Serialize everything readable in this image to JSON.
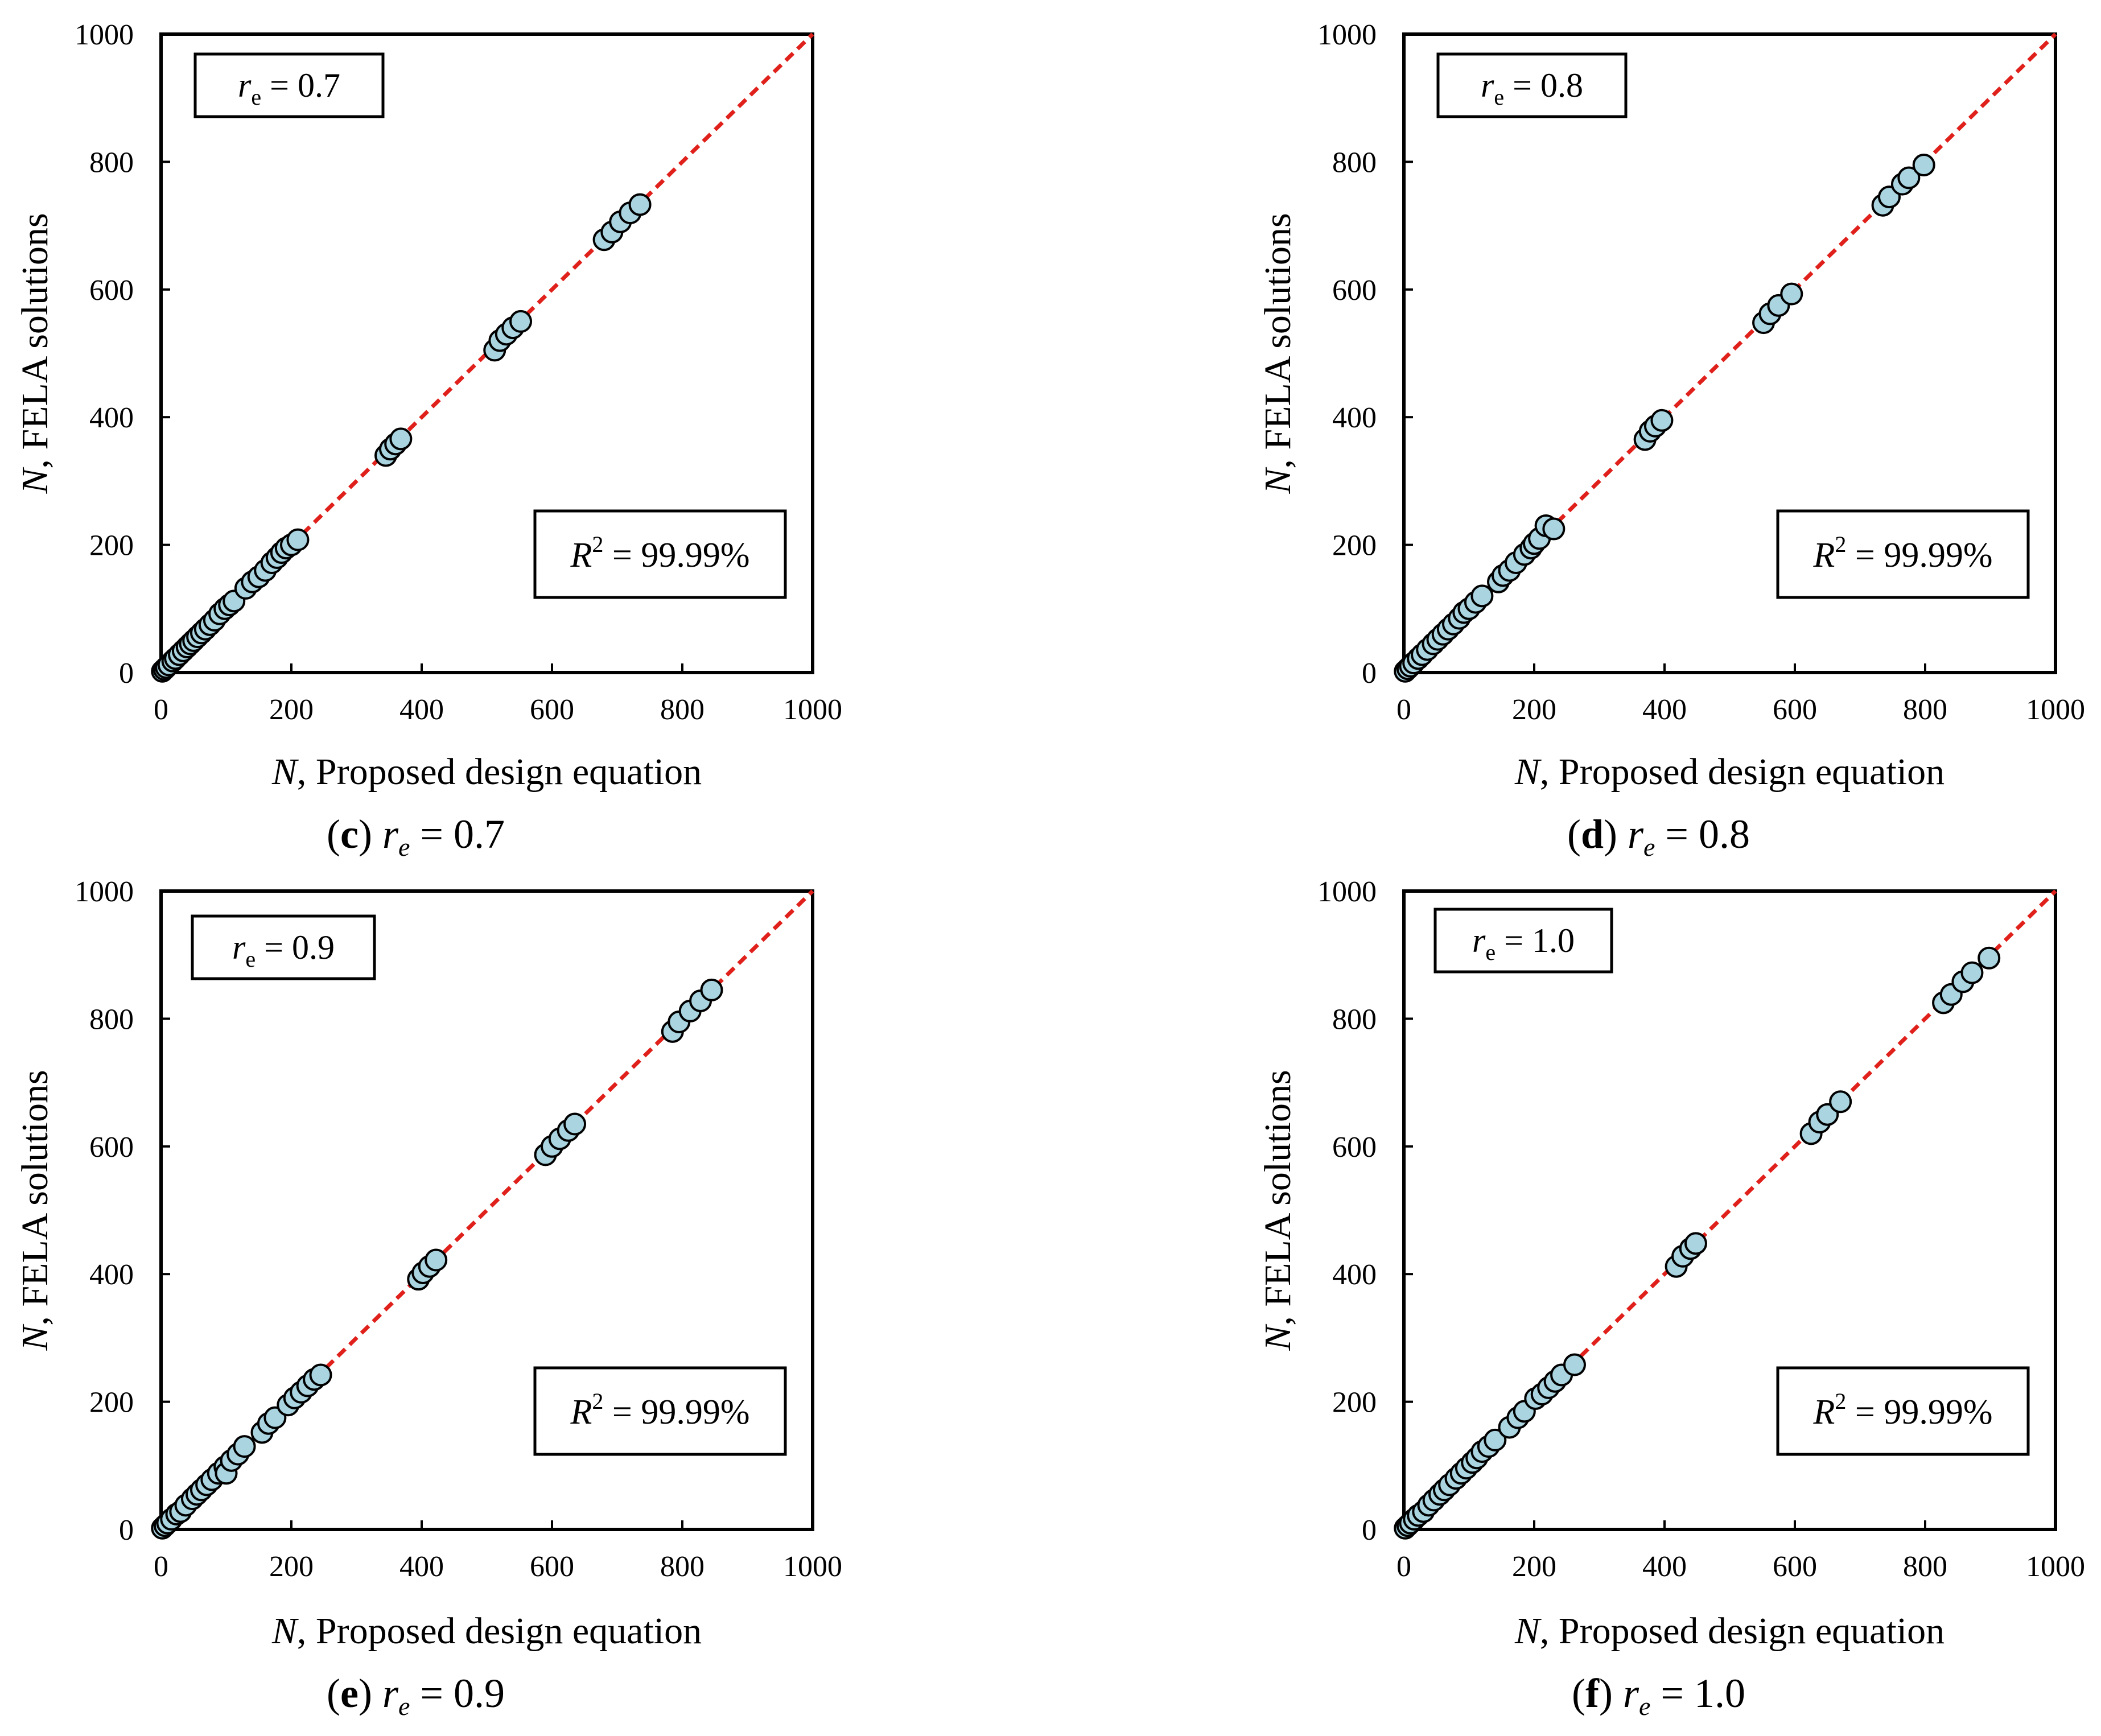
{
  "colors": {
    "marker_fill": "#a9d4e0",
    "marker_stroke": "#000000",
    "fit_line": "#e0201b",
    "axis": "#000000"
  },
  "chart_data": [
    {
      "panel": "c",
      "type": "scatter",
      "re": "0.7",
      "caption": {
        "letter": "c",
        "param": "r",
        "param_sub": "e",
        "value": "0.7"
      },
      "legend_box": {
        "var": "r",
        "sub": "e",
        "eq": "= 0.7"
      },
      "r2_box": {
        "var": "R",
        "sup": "2",
        "eq": "= 99.99%"
      },
      "xlabel": {
        "var": "N",
        "text": ", Proposed design equation"
      },
      "ylabel": {
        "var": "N",
        "text": ", FELA solutions"
      },
      "xlim": [
        0,
        1000
      ],
      "ylim": [
        0,
        1000
      ],
      "xticks": [
        0,
        200,
        400,
        600,
        800,
        1000
      ],
      "yticks": [
        0,
        200,
        400,
        600,
        800,
        1000
      ],
      "fit_line": {
        "from": [
          0,
          0
        ],
        "to": [
          1000,
          1000
        ],
        "style": "dashed"
      },
      "points": [
        [
          2,
          2
        ],
        [
          5,
          5
        ],
        [
          8,
          8
        ],
        [
          12,
          12
        ],
        [
          18,
          18
        ],
        [
          22,
          22
        ],
        [
          28,
          28
        ],
        [
          34,
          34
        ],
        [
          40,
          40
        ],
        [
          45,
          45
        ],
        [
          50,
          50
        ],
        [
          56,
          56
        ],
        [
          62,
          62
        ],
        [
          68,
          68
        ],
        [
          75,
          75
        ],
        [
          82,
          82
        ],
        [
          90,
          92
        ],
        [
          98,
          100
        ],
        [
          105,
          106
        ],
        [
          112,
          112
        ],
        [
          130,
          132
        ],
        [
          140,
          142
        ],
        [
          150,
          150
        ],
        [
          160,
          160
        ],
        [
          170,
          172
        ],
        [
          178,
          180
        ],
        [
          185,
          188
        ],
        [
          192,
          195
        ],
        [
          200,
          200
        ],
        [
          210,
          208
        ],
        [
          345,
          340
        ],
        [
          352,
          350
        ],
        [
          360,
          358
        ],
        [
          368,
          366
        ],
        [
          512,
          505
        ],
        [
          520,
          520
        ],
        [
          530,
          530
        ],
        [
          540,
          540
        ],
        [
          552,
          550
        ],
        [
          680,
          678
        ],
        [
          692,
          690
        ],
        [
          705,
          706
        ],
        [
          720,
          720
        ],
        [
          735,
          733
        ]
      ]
    },
    {
      "panel": "d",
      "type": "scatter",
      "re": "0.8",
      "caption": {
        "letter": "d",
        "param": "r",
        "param_sub": "e",
        "value": "0.8"
      },
      "legend_box": {
        "var": "r",
        "sub": "e",
        "eq": "= 0.8"
      },
      "r2_box": {
        "var": "R",
        "sup": "2",
        "eq": "= 99.99%"
      },
      "xlabel": {
        "var": "N",
        "text": ", Proposed design equation"
      },
      "ylabel": {
        "var": "N",
        "text": ", FELA solutions"
      },
      "xlim": [
        0,
        1000
      ],
      "ylim": [
        0,
        1000
      ],
      "xticks": [
        0,
        200,
        400,
        600,
        800,
        1000
      ],
      "yticks": [
        0,
        200,
        400,
        600,
        800,
        1000
      ],
      "fit_line": {
        "from": [
          0,
          0
        ],
        "to": [
          1000,
          1000
        ],
        "style": "dashed"
      },
      "points": [
        [
          2,
          2
        ],
        [
          6,
          6
        ],
        [
          10,
          10
        ],
        [
          15,
          15
        ],
        [
          22,
          22
        ],
        [
          28,
          28
        ],
        [
          36,
          36
        ],
        [
          45,
          45
        ],
        [
          52,
          52
        ],
        [
          60,
          60
        ],
        [
          68,
          68
        ],
        [
          76,
          76
        ],
        [
          85,
          85
        ],
        [
          92,
          94
        ],
        [
          100,
          100
        ],
        [
          110,
          110
        ],
        [
          120,
          120
        ],
        [
          145,
          142
        ],
        [
          152,
          152
        ],
        [
          162,
          160
        ],
        [
          172,
          172
        ],
        [
          185,
          185
        ],
        [
          195,
          195
        ],
        [
          200,
          202
        ],
        [
          208,
          210
        ],
        [
          218,
          230
        ],
        [
          230,
          225
        ],
        [
          370,
          365
        ],
        [
          378,
          378
        ],
        [
          386,
          386
        ],
        [
          396,
          395
        ],
        [
          552,
          548
        ],
        [
          562,
          562
        ],
        [
          575,
          575
        ],
        [
          595,
          593
        ],
        [
          735,
          732
        ],
        [
          745,
          745
        ],
        [
          765,
          765
        ],
        [
          775,
          775
        ],
        [
          798,
          795
        ]
      ]
    },
    {
      "panel": "e",
      "type": "scatter",
      "re": "0.9",
      "caption": {
        "letter": "e",
        "param": "r",
        "param_sub": "e",
        "value": "0.9"
      },
      "legend_box": {
        "var": "r",
        "sub": "e",
        "eq": "= 0.9"
      },
      "r2_box": {
        "var": "R",
        "sup": "2",
        "eq": "= 99.99%"
      },
      "xlabel": {
        "var": "N",
        "text": ", Proposed design equation"
      },
      "ylabel": {
        "var": "N",
        "text": ", FELA solutions"
      },
      "xlim": [
        0,
        1000
      ],
      "ylim": [
        0,
        1000
      ],
      "xticks": [
        0,
        200,
        400,
        600,
        800,
        1000
      ],
      "yticks": [
        0,
        200,
        400,
        600,
        800,
        1000
      ],
      "fit_line": {
        "from": [
          0,
          0
        ],
        "to": [
          1000,
          1000
        ],
        "style": "dashed"
      },
      "points": [
        [
          2,
          2
        ],
        [
          6,
          6
        ],
        [
          10,
          10
        ],
        [
          16,
          16
        ],
        [
          24,
          24
        ],
        [
          30,
          28
        ],
        [
          38,
          38
        ],
        [
          48,
          48
        ],
        [
          55,
          55
        ],
        [
          62,
          62
        ],
        [
          70,
          70
        ],
        [
          78,
          78
        ],
        [
          88,
          88
        ],
        [
          98,
          98
        ],
        [
          100,
          88
        ],
        [
          108,
          108
        ],
        [
          118,
          118
        ],
        [
          128,
          130
        ],
        [
          155,
          152
        ],
        [
          165,
          166
        ],
        [
          175,
          175
        ],
        [
          195,
          195
        ],
        [
          205,
          206
        ],
        [
          215,
          215
        ],
        [
          225,
          225
        ],
        [
          235,
          235
        ],
        [
          245,
          242
        ],
        [
          395,
          392
        ],
        [
          402,
          402
        ],
        [
          412,
          412
        ],
        [
          422,
          422
        ],
        [
          590,
          587
        ],
        [
          600,
          600
        ],
        [
          612,
          612
        ],
        [
          625,
          625
        ],
        [
          635,
          635
        ],
        [
          785,
          780
        ],
        [
          795,
          795
        ],
        [
          812,
          812
        ],
        [
          828,
          828
        ],
        [
          845,
          845
        ]
      ]
    },
    {
      "panel": "f",
      "type": "scatter",
      "re": "1.0",
      "caption": {
        "letter": "f",
        "param": "r",
        "param_sub": "e",
        "value": "1.0"
      },
      "legend_box": {
        "var": "r",
        "sub": "e",
        "eq": "= 1.0"
      },
      "r2_box": {
        "var": "R",
        "sup": "2",
        "eq": "= 99.99%"
      },
      "xlabel": {
        "var": "N",
        "text": ", Proposed design equation"
      },
      "ylabel": {
        "var": "N",
        "text": ", FELA solutions"
      },
      "xlim": [
        0,
        1000
      ],
      "ylim": [
        0,
        1000
      ],
      "xticks": [
        0,
        200,
        400,
        600,
        800,
        1000
      ],
      "yticks": [
        0,
        200,
        400,
        600,
        800,
        1000
      ],
      "fit_line": {
        "from": [
          0,
          0
        ],
        "to": [
          1000,
          1000
        ],
        "style": "dashed"
      },
      "points": [
        [
          2,
          2
        ],
        [
          6,
          6
        ],
        [
          10,
          10
        ],
        [
          16,
          16
        ],
        [
          22,
          22
        ],
        [
          30,
          28
        ],
        [
          38,
          38
        ],
        [
          46,
          46
        ],
        [
          55,
          55
        ],
        [
          62,
          62
        ],
        [
          70,
          70
        ],
        [
          80,
          80
        ],
        [
          88,
          88
        ],
        [
          96,
          96
        ],
        [
          105,
          105
        ],
        [
          112,
          112
        ],
        [
          120,
          122
        ],
        [
          130,
          130
        ],
        [
          140,
          140
        ],
        [
          162,
          160
        ],
        [
          175,
          175
        ],
        [
          185,
          185
        ],
        [
          202,
          205
        ],
        [
          212,
          212
        ],
        [
          222,
          222
        ],
        [
          232,
          232
        ],
        [
          242,
          242
        ],
        [
          262,
          258
        ],
        [
          418,
          412
        ],
        [
          428,
          428
        ],
        [
          440,
          440
        ],
        [
          448,
          448
        ],
        [
          625,
          620
        ],
        [
          638,
          638
        ],
        [
          650,
          650
        ],
        [
          670,
          670
        ],
        [
          828,
          825
        ],
        [
          840,
          838
        ],
        [
          858,
          858
        ],
        [
          872,
          872
        ],
        [
          898,
          895
        ]
      ]
    }
  ]
}
